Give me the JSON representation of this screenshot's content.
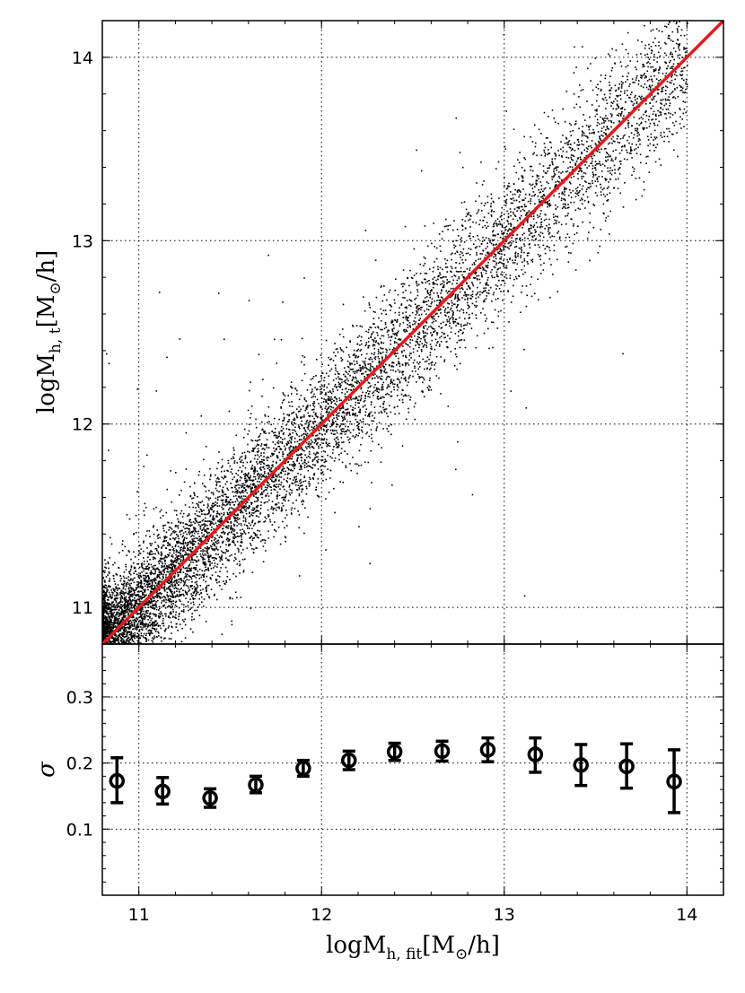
{
  "chart_data": [
    {
      "type": "scatter",
      "panel": "top",
      "xlim": [
        10.8,
        14.2
      ],
      "ylim": [
        10.8,
        14.2
      ],
      "xticks": [
        "11",
        "12",
        "13",
        "14"
      ],
      "yticks": [
        "11",
        "12",
        "13",
        "14"
      ],
      "grid": true,
      "ylabel_main": "logM",
      "ylabel_sub": "h, t",
      "ylabel_unit": "[M",
      "ylabel_unit_sub": "⊙",
      "ylabel_unit_end": "/h]",
      "point_color": "#000000",
      "line_color": "#e31a1c",
      "reference_line": {
        "x": [
          10.8,
          14.2
        ],
        "y": [
          10.8,
          14.2
        ]
      },
      "scatter_description": {
        "n_points": 9000,
        "relation": "y ≈ x",
        "x_range": [
          10.8,
          14.0
        ],
        "scatter_sigma_small_x": 0.16,
        "scatter_sigma_large_x": 0.2,
        "seed": 7
      }
    },
    {
      "type": "scatter",
      "panel": "bottom",
      "xlim": [
        10.8,
        14.2
      ],
      "ylim": [
        0.0,
        0.38
      ],
      "xticks": [
        "11",
        "12",
        "13",
        "14"
      ],
      "yticks": [
        "0.1",
        "0.2",
        "0.3"
      ],
      "grid": true,
      "xlabel_main": "logM",
      "xlabel_sub": "h, fit",
      "xlabel_unit": "[M",
      "xlabel_unit_sub": "⊙",
      "xlabel_unit_end": "/h]",
      "ylabel": "σ",
      "marker": "open-circle",
      "points": [
        {
          "x": 10.88,
          "y": 0.173,
          "lo": 0.14,
          "hi": 0.208
        },
        {
          "x": 11.13,
          "y": 0.157,
          "lo": 0.138,
          "hi": 0.178
        },
        {
          "x": 11.39,
          "y": 0.147,
          "lo": 0.133,
          "hi": 0.161
        },
        {
          "x": 11.64,
          "y": 0.167,
          "lo": 0.155,
          "hi": 0.18
        },
        {
          "x": 11.9,
          "y": 0.192,
          "lo": 0.18,
          "hi": 0.204
        },
        {
          "x": 12.15,
          "y": 0.204,
          "lo": 0.19,
          "hi": 0.218
        },
        {
          "x": 12.4,
          "y": 0.217,
          "lo": 0.204,
          "hi": 0.23
        },
        {
          "x": 12.66,
          "y": 0.218,
          "lo": 0.203,
          "hi": 0.233
        },
        {
          "x": 12.91,
          "y": 0.22,
          "lo": 0.202,
          "hi": 0.238
        },
        {
          "x": 13.17,
          "y": 0.213,
          "lo": 0.186,
          "hi": 0.238
        },
        {
          "x": 13.42,
          "y": 0.197,
          "lo": 0.166,
          "hi": 0.228
        },
        {
          "x": 13.67,
          "y": 0.195,
          "lo": 0.162,
          "hi": 0.229
        },
        {
          "x": 13.93,
          "y": 0.172,
          "lo": 0.125,
          "hi": 0.22
        }
      ]
    }
  ]
}
